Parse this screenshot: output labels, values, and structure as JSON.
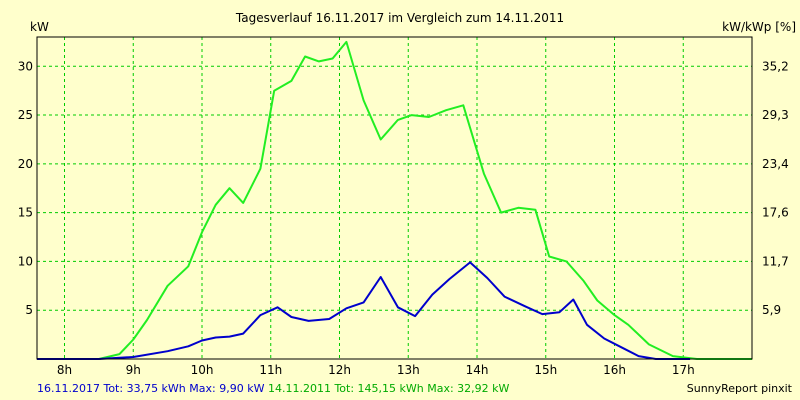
{
  "chart_data": {
    "type": "line",
    "title": "Tagesverlauf 16.11.2017 im Vergleich zum 14.11.2011",
    "ylabel_left": "kW",
    "ylabel_right": "kW/kWp [%]",
    "ylim": [
      0,
      33
    ],
    "yticks_left": [
      5,
      10,
      15,
      20,
      25,
      30
    ],
    "yticks_right": [
      "5,9",
      "11,7",
      "17,6",
      "23,4",
      "29,3",
      "35,2"
    ],
    "xlim": [
      7.6,
      18.0
    ],
    "xticks": [
      8,
      9,
      10,
      11,
      12,
      13,
      14,
      15,
      16,
      17
    ],
    "xtick_labels": [
      "8h",
      "9h",
      "10h",
      "11h",
      "12h",
      "13h",
      "14h",
      "15h",
      "16h",
      "17h"
    ],
    "grid": true,
    "series": [
      {
        "name": "14.11.2011",
        "color": "#22ee22",
        "x": [
          8.0,
          8.5,
          8.8,
          9.0,
          9.2,
          9.5,
          9.8,
          10.0,
          10.2,
          10.4,
          10.6,
          10.85,
          11.05,
          11.3,
          11.5,
          11.7,
          11.9,
          12.1,
          12.35,
          12.6,
          12.85,
          13.05,
          13.3,
          13.55,
          13.8,
          14.1,
          14.35,
          14.6,
          14.85,
          15.05,
          15.3,
          15.55,
          15.75,
          16.0,
          16.2,
          16.5,
          16.85,
          17.2,
          17.5,
          17.8,
          18.0
        ],
        "values": [
          0,
          0,
          0.5,
          2,
          4,
          7.5,
          9.5,
          13,
          15.8,
          17.5,
          16,
          19.5,
          27.5,
          28.5,
          31,
          30.5,
          30.8,
          32.5,
          26.5,
          22.5,
          24.5,
          25,
          24.8,
          25.5,
          26,
          19,
          15,
          15.5,
          15.3,
          10.5,
          10,
          8,
          6,
          4.5,
          3.5,
          1.5,
          0.3,
          0,
          0,
          0,
          0
        ]
      },
      {
        "name": "16.11.2017",
        "color": "#0000cc",
        "x": [
          7.6,
          8.0,
          8.5,
          9.0,
          9.5,
          9.8,
          10.0,
          10.2,
          10.4,
          10.6,
          10.85,
          11.1,
          11.3,
          11.55,
          11.85,
          12.1,
          12.35,
          12.6,
          12.85,
          13.1,
          13.35,
          13.6,
          13.9,
          14.15,
          14.4,
          14.7,
          14.95,
          15.2,
          15.4,
          15.6,
          15.85,
          16.1,
          16.35,
          16.6,
          16.85,
          17.1
        ],
        "values": [
          0,
          0,
          0,
          0.2,
          0.8,
          1.3,
          1.9,
          2.2,
          2.3,
          2.6,
          4.5,
          5.3,
          4.3,
          3.9,
          4.1,
          5.2,
          5.8,
          8.4,
          5.3,
          4.4,
          6.6,
          8.2,
          9.9,
          8.3,
          6.4,
          5.4,
          4.6,
          4.8,
          6.1,
          3.5,
          2.1,
          1.2,
          0.3,
          0,
          0,
          0
        ]
      }
    ]
  },
  "footer": {
    "legend_2017": "16.11.2017 Tot: 33,75 kWh Max: 9,90 kW",
    "legend_2011": "14.11.2011 Tot: 145,15 kWh Max: 32,92 kW",
    "credit": "SunnyReport pinxit"
  }
}
